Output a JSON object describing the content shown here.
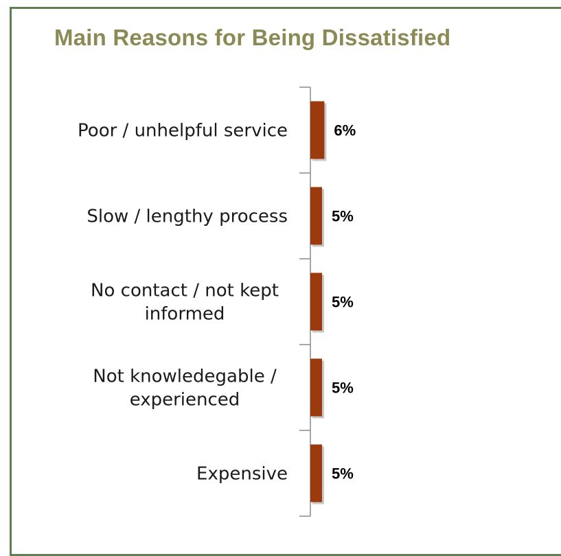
{
  "colors": {
    "frame": "#5f7f52",
    "title": "#8b8a55",
    "bar": "#9b3a0c",
    "axis": "#8a8a8a"
  },
  "chart_data": {
    "type": "bar",
    "orientation": "horizontal",
    "title": "Main Reasons for Being Dissatisfied",
    "categories": [
      [
        "Poor / unhelpful service"
      ],
      [
        "Slow / lengthy process"
      ],
      [
        "No contact / not kept",
        "informed"
      ],
      [
        "Not knowledegable /",
        "experienced"
      ],
      [
        "Expensive"
      ]
    ],
    "values": [
      6,
      5,
      5,
      5,
      5
    ],
    "data_labels": [
      "6%",
      "5%",
      "5%",
      "5%",
      "5%"
    ],
    "unit": "%",
    "xlabel": "",
    "ylabel": "",
    "grid": false,
    "legend": "none"
  }
}
